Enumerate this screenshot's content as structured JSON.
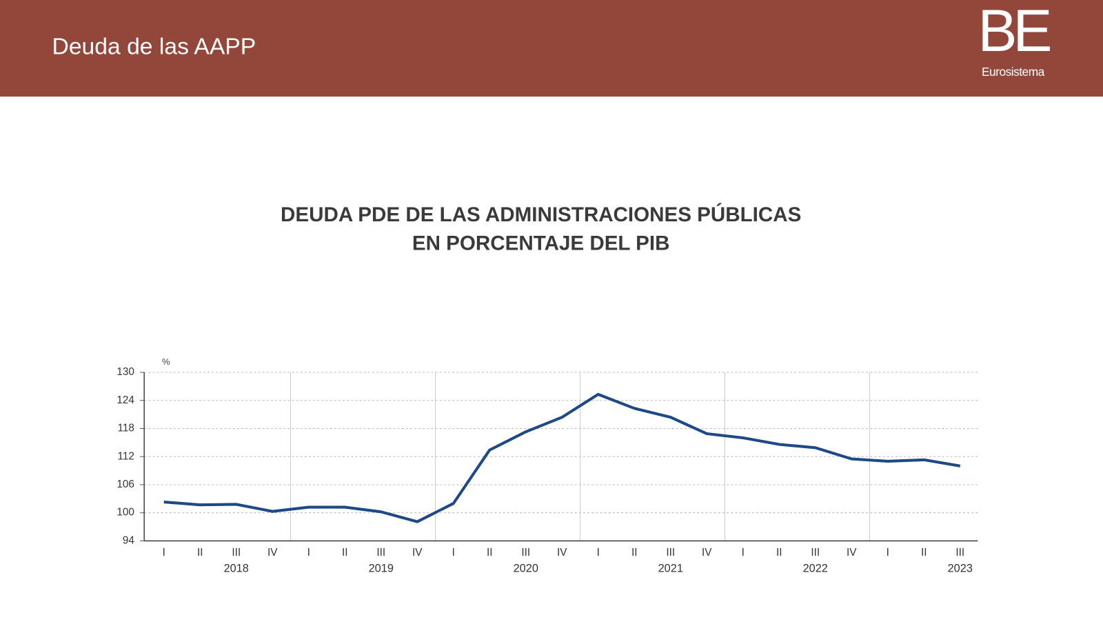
{
  "header": {
    "title": "Deuda de las AAPP",
    "logo": "BE",
    "logo_subtitle": "Eurosistema"
  },
  "chart_data": {
    "type": "line",
    "title_lines": [
      "DEUDA PDE DE LAS ADMINISTRACIONES PÚBLICAS",
      "EN PORCENTAJE DEL PIB"
    ],
    "y_unit": "%",
    "categories": [
      "I",
      "II",
      "III",
      "IV",
      "I",
      "II",
      "III",
      "IV",
      "I",
      "II",
      "III",
      "IV",
      "I",
      "II",
      "III",
      "IV",
      "I",
      "II",
      "III",
      "IV",
      "I",
      "II",
      "III"
    ],
    "years": [
      "2018",
      "2019",
      "2020",
      "2021",
      "2022",
      "2023"
    ],
    "values": [
      102.3,
      101.7,
      101.8,
      100.3,
      101.2,
      101.2,
      100.2,
      98.1,
      102.0,
      113.4,
      117.3,
      120.4,
      125.3,
      122.3,
      120.4,
      116.9,
      116.0,
      114.6,
      113.9,
      111.5,
      111.0,
      111.3,
      110.0
    ],
    "color": "#1d4a86",
    "ylim": [
      94,
      130
    ],
    "yticks": [
      94,
      100,
      106,
      112,
      118,
      124,
      130
    ],
    "grid": true
  }
}
